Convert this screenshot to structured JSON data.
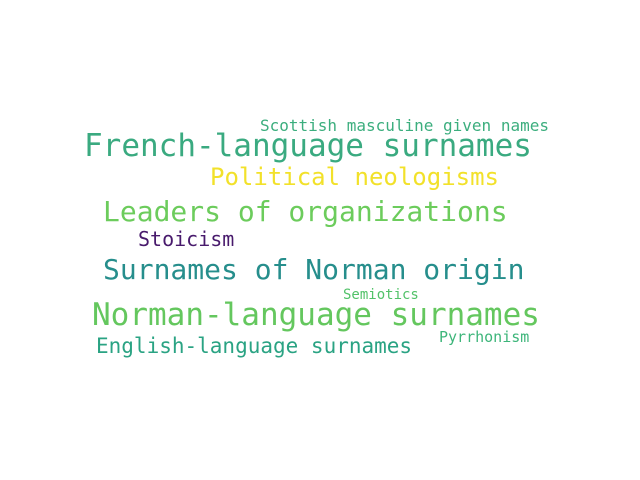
{
  "words": [
    {
      "id": "w-scottish",
      "text": "Scottish masculine given names",
      "color": "#3cae7e"
    },
    {
      "id": "w-french",
      "text": "French-language surnames",
      "color": "#3aaa80"
    },
    {
      "id": "w-political",
      "text": "Political neologisms",
      "color": "#f2e12a"
    },
    {
      "id": "w-leaders",
      "text": "Leaders of organizations",
      "color": "#6ccc5c"
    },
    {
      "id": "w-stoicism",
      "text": "Stoicism",
      "color": "#481a6c"
    },
    {
      "id": "w-surnames",
      "text": "Surnames of Norman origin",
      "color": "#268e8c"
    },
    {
      "id": "w-semiotics",
      "text": "Semiotics",
      "color": "#52c269"
    },
    {
      "id": "w-norman",
      "text": "Norman-language surnames",
      "color": "#64c75e"
    },
    {
      "id": "w-english",
      "text": "English-language surnames",
      "color": "#2aa383"
    },
    {
      "id": "w-pyrrhonism",
      "text": "Pyrrhonism",
      "color": "#3db57a"
    }
  ]
}
